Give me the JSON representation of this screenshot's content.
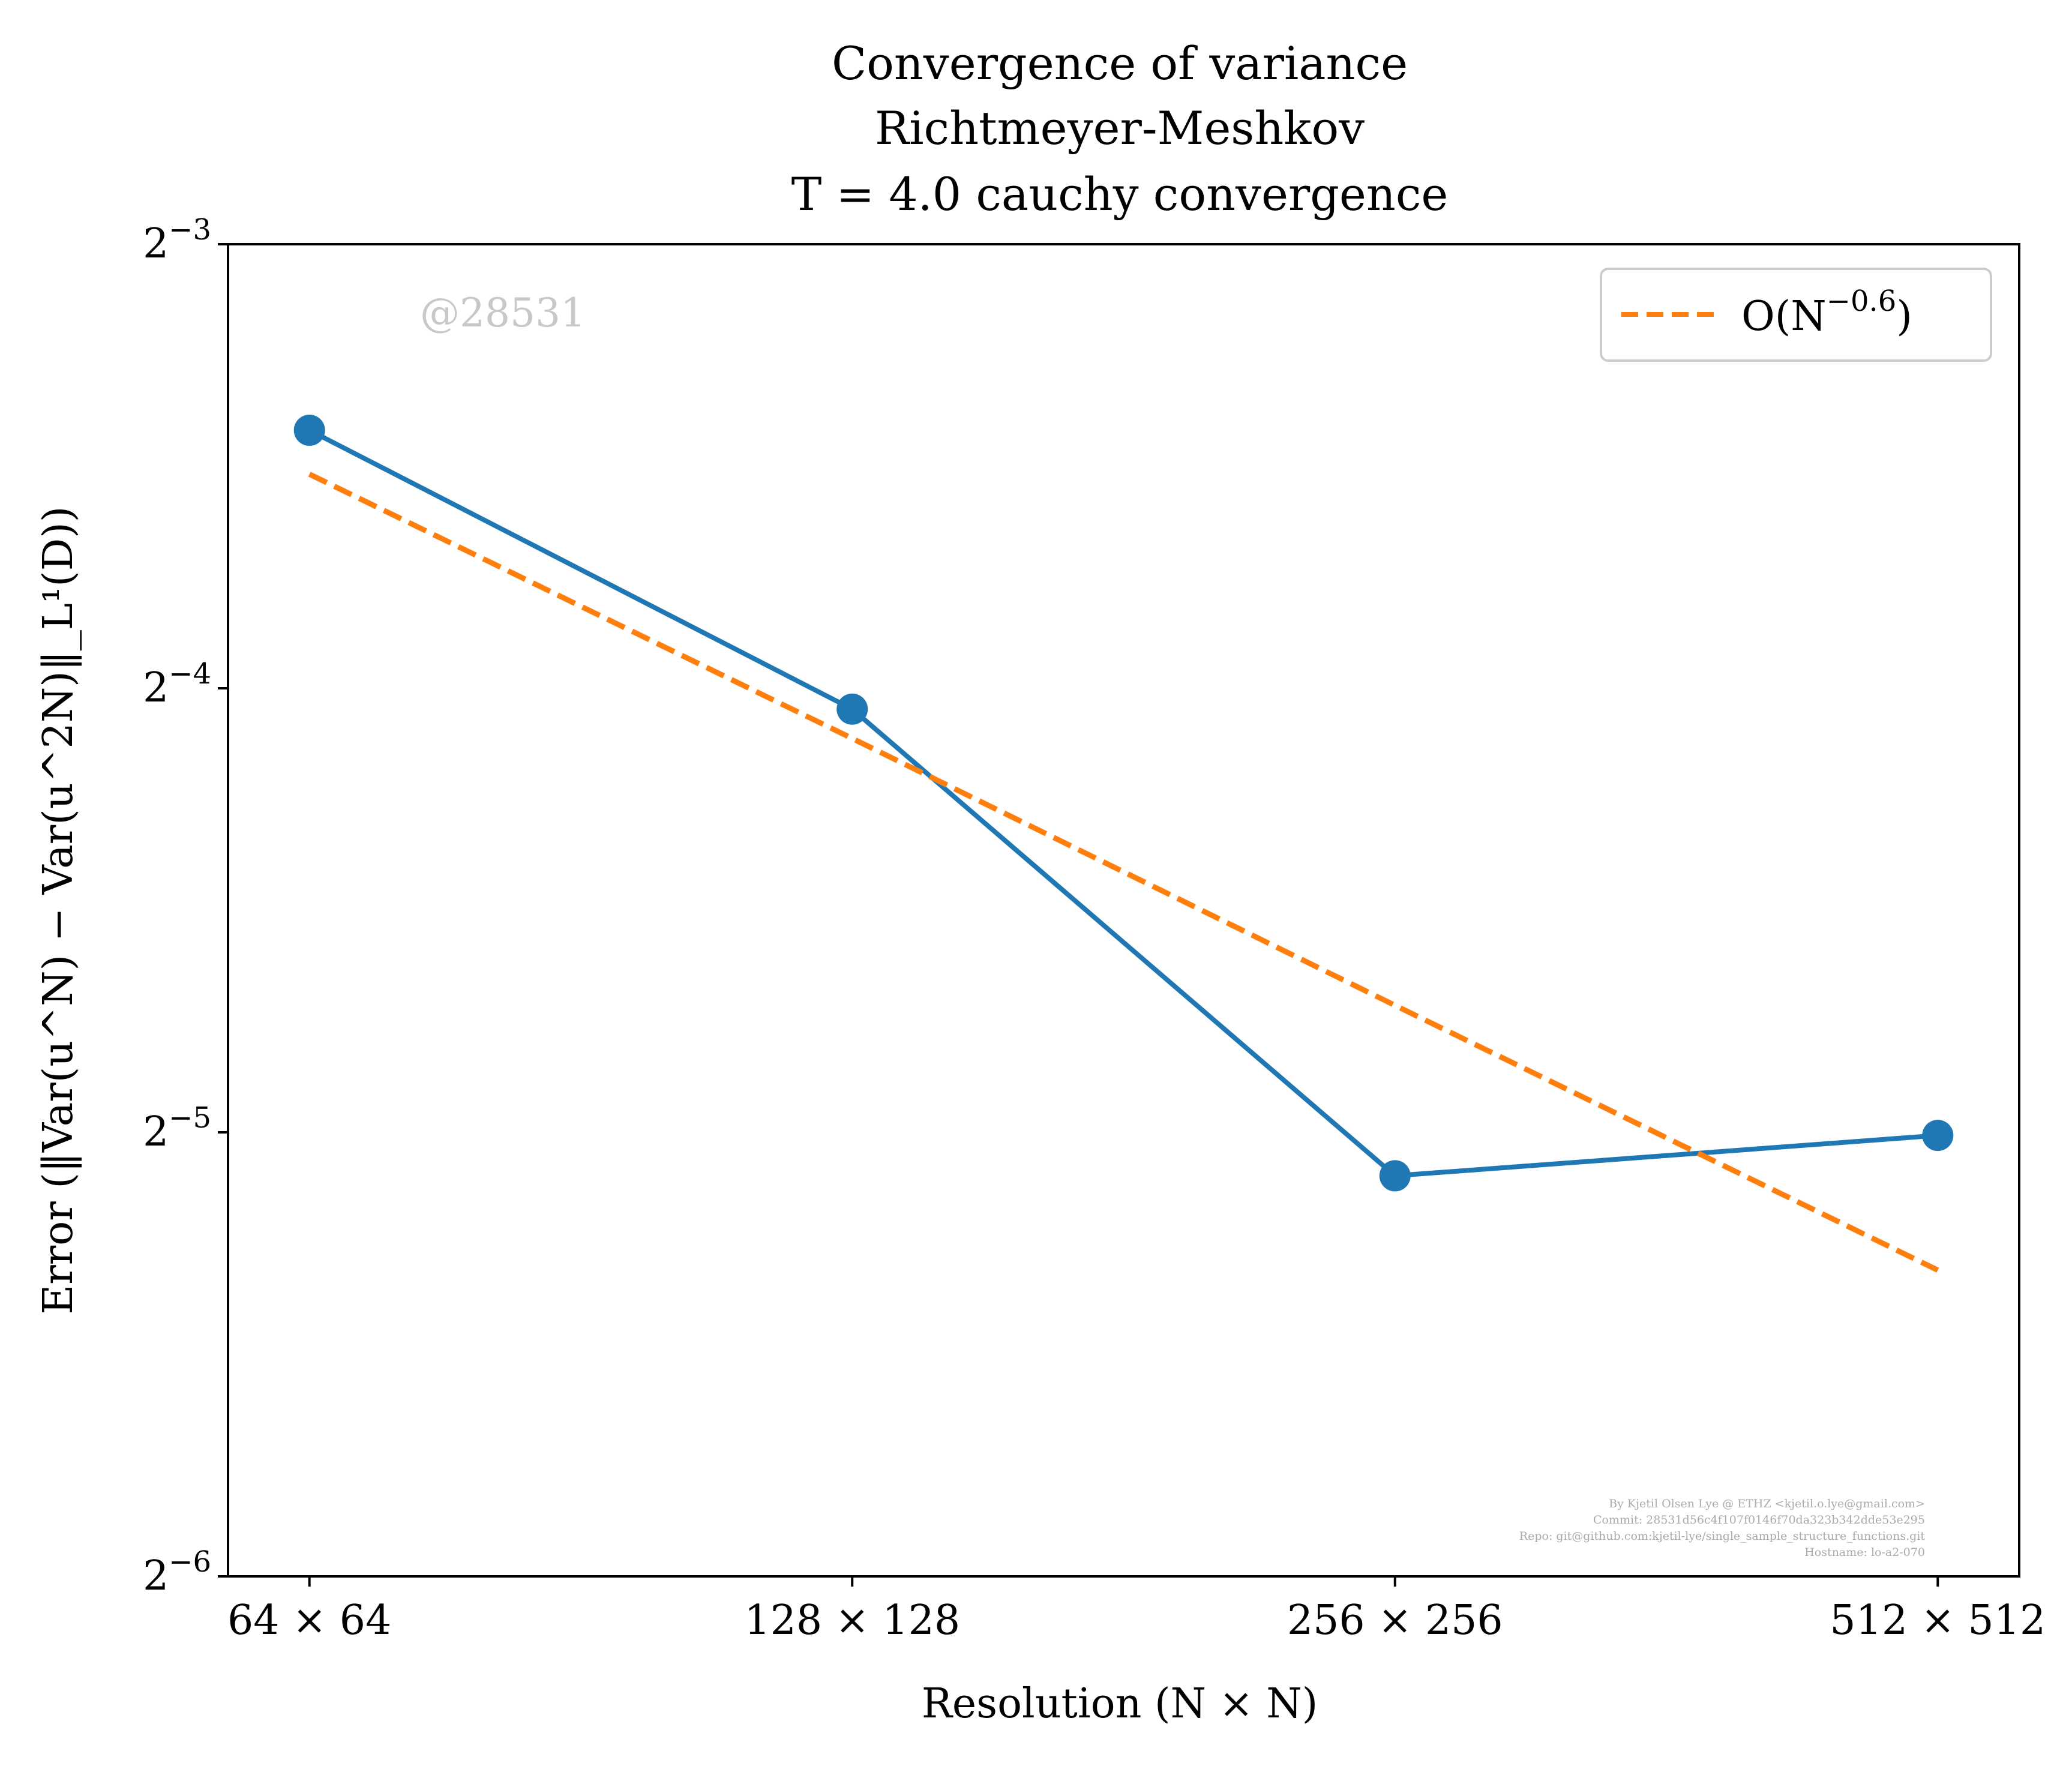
{
  "chart_data": {
    "type": "line",
    "title_lines": [
      "Convergence of variance",
      "Richtmeyer-Meshkov",
      "T = 4.0 cauchy convergence"
    ],
    "xlabel": "Resolution (N × N)",
    "ylabel": "Error (‖Var(u^N) − Var(u^2N)‖_L¹(D))",
    "x_scale": "log2",
    "y_scale": "log2",
    "ylim": [
      0.015625,
      0.125
    ],
    "x": [
      64,
      128,
      256,
      512
    ],
    "x_tick_labels": [
      "64 × 64",
      "128 × 128",
      "256 × 256",
      "512 × 512"
    ],
    "y_ticks": [
      0.125,
      0.0625,
      0.03125,
      0.015625
    ],
    "y_tick_labels": [
      {
        "base": "2",
        "exp": "−3"
      },
      {
        "base": "2",
        "exp": "−4"
      },
      {
        "base": "2",
        "exp": "−5"
      },
      {
        "base": "2",
        "exp": "−6"
      }
    ],
    "series": [
      {
        "values": [
          0.0935,
          0.0605,
          0.0292,
          0.0311
        ],
        "color": "#1f77b4",
        "style": "solid",
        "marker": "circle"
      },
      {
        "name": "O(N^−0.6)",
        "values": [
          0.0873,
          0.0578,
          0.0381,
          0.0252
        ],
        "color": "#ff7f0e",
        "style": "dashed",
        "marker": "none"
      }
    ],
    "legend": {
      "position": "top-right",
      "entries": [
        {
          "base": "O(N",
          "exp": "−0.6",
          "tail": ")"
        }
      ]
    },
    "grid": false
  },
  "annotations": {
    "watermark": "@28531",
    "credit_lines": [
      "By Kjetil Olsen Lye @ ETHZ <kjetil.o.lye@gmail.com>",
      "Commit: 28531d56c4f107f0146f70da323b342dde53e295",
      "Repo: git@github.com:kjetil-lye/single_sample_structure_functions.git",
      "Hostname: lo-a2-070"
    ]
  }
}
